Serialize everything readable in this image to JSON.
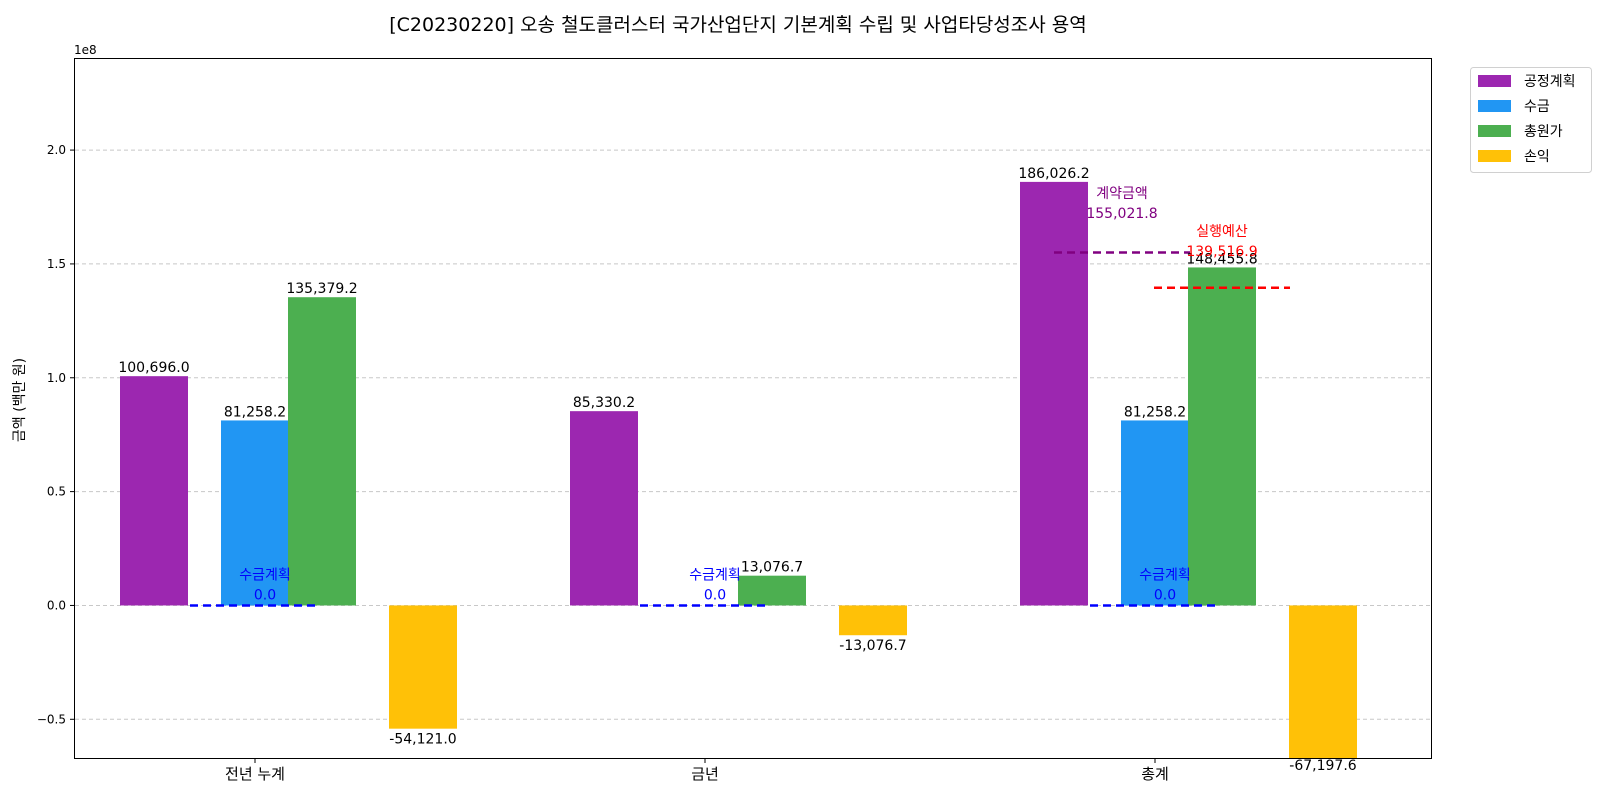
{
  "chart_data": {
    "type": "bar",
    "title": "[C20230220] 오송 철도클러스터 국가산업단지 기본계획 수립 및 사업타당성조사 용역",
    "xlabel": "",
    "ylabel": "금액 (백만 원)",
    "y_offset_label": "1e8",
    "ylim": [
      -0.67,
      2.4
    ],
    "yticks": [
      -0.5,
      0.0,
      0.5,
      1.0,
      1.5,
      2.0
    ],
    "ytick_labels": [
      "−0.5",
      "0.0",
      "0.5",
      "1.0",
      "1.5",
      "2.0"
    ],
    "grid": true,
    "legend_position": "outside-top-right",
    "categories": [
      "전년 누계",
      "금년",
      "총계"
    ],
    "series": [
      {
        "name": "공정계획",
        "color": "#9C27B0",
        "values": [
          100696.0,
          85330.2,
          186026.2
        ],
        "labels": [
          "100,696.0",
          "85,330.2",
          "186,026.2"
        ]
      },
      {
        "name": "수금",
        "color": "#2196F3",
        "values": [
          81258.2,
          0,
          81258.2
        ],
        "labels": [
          "81,258.2",
          "",
          "81,258.2"
        ]
      },
      {
        "name": "총원가",
        "color": "#4CAF50",
        "values": [
          135379.2,
          13076.7,
          148455.8
        ],
        "labels": [
          "135,379.2",
          "13,076.7",
          "148,455.8"
        ]
      },
      {
        "name": "손익",
        "color": "#FFC107",
        "values": [
          -54121.0,
          -13076.7,
          -67197.6
        ],
        "labels": [
          "-54,121.0",
          "-13,076.7",
          "-67,197.6"
        ]
      }
    ],
    "reference_lines": [
      {
        "category": 0,
        "label": "수금계획",
        "value_text": "0.0",
        "value": 0.0,
        "color": "#0000ff"
      },
      {
        "category": 1,
        "label": "수금계획",
        "value_text": "0.0",
        "value": 0.0,
        "color": "#0000ff"
      },
      {
        "category": 2,
        "label": "수금계획",
        "value_text": "0.0",
        "value": 0.0,
        "color": "#0000ff"
      },
      {
        "category": 2,
        "label": "계약금액",
        "value_text": "155,021.8",
        "value": 155021.8,
        "color": "#800080"
      },
      {
        "category": 2,
        "label": "실행예산",
        "value_text": "139,516.9",
        "value": 139516.9,
        "color": "#ff0000"
      }
    ]
  }
}
